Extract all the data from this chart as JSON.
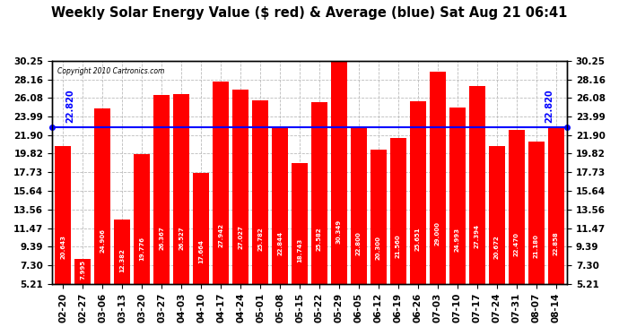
{
  "title": "Weekly Solar Energy Value ($ red) & Average (blue) Sat Aug 21 06:41",
  "copyright": "Copyright 2010 Cartronics.com",
  "average": 22.82,
  "average_label": "22.820",
  "bar_color": "#FF0000",
  "avg_line_color": "#0000FF",
  "background_color": "#FFFFFF",
  "plot_bg_color": "#FFFFFF",
  "grid_color": "#BBBBBB",
  "categories": [
    "02-20",
    "02-27",
    "03-06",
    "03-13",
    "03-20",
    "03-27",
    "04-03",
    "04-10",
    "04-17",
    "04-24",
    "05-01",
    "05-08",
    "05-15",
    "05-22",
    "05-29",
    "06-05",
    "06-12",
    "06-19",
    "06-26",
    "07-03",
    "07-10",
    "07-17",
    "07-24",
    "07-31",
    "08-07",
    "08-14"
  ],
  "values": [
    20.643,
    7.995,
    24.906,
    12.382,
    19.776,
    26.367,
    26.527,
    17.664,
    27.942,
    27.027,
    25.782,
    22.844,
    18.743,
    25.582,
    30.349,
    22.8,
    20.3,
    21.56,
    25.651,
    29.0,
    24.993,
    27.394,
    20.672,
    22.47,
    21.18,
    22.858
  ],
  "ylim_min": 5.21,
  "ylim_max": 30.25,
  "yticks_left": [
    5.21,
    7.3,
    9.39,
    11.47,
    13.56,
    15.64,
    17.73,
    19.82,
    21.9,
    23.99,
    26.08,
    28.16,
    30.25
  ],
  "yticks_right": [
    5.21,
    7.3,
    9.39,
    11.47,
    13.56,
    15.64,
    17.73,
    19.82,
    21.9,
    23.99,
    26.08,
    28.16,
    30.25
  ],
  "value_fontsize": 5.0,
  "tick_fontsize": 7.5,
  "title_fontsize": 10.5,
  "bar_bottom": 5.21
}
